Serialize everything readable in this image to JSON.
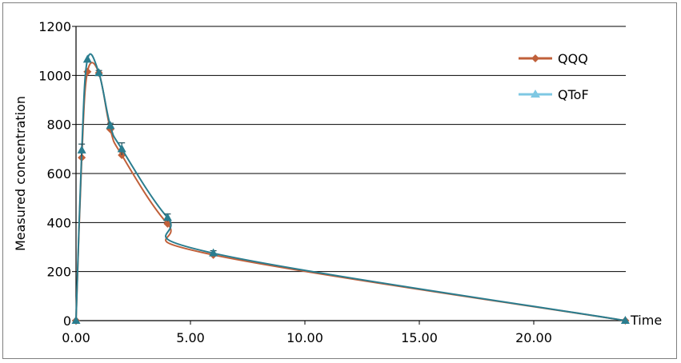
{
  "chart_data": {
    "type": "line",
    "title": "",
    "xlabel": "Time",
    "ylabel": "Measured concentration",
    "xlim": [
      0,
      24
    ],
    "ylim": [
      0,
      1200
    ],
    "x_ticks": [
      "0.00",
      "5.00",
      "10.00",
      "15.00",
      "20.00"
    ],
    "x_tick_values": [
      0,
      5,
      10,
      15,
      20
    ],
    "y_ticks": [
      "0",
      "200",
      "400",
      "600",
      "800",
      "1000",
      "1200"
    ],
    "y_tick_values": [
      0,
      200,
      400,
      600,
      800,
      1000,
      1200
    ],
    "grid": "horizontal",
    "legend_position": "top-right",
    "series": [
      {
        "name": "QQQ",
        "color": "#c0603a",
        "marker": "diamond",
        "x": [
          0,
          0.25,
          0.5,
          1,
          1.5,
          2,
          4,
          6,
          24
        ],
        "y": [
          0,
          665,
          1015,
          1010,
          780,
          675,
          395,
          268,
          0
        ]
      },
      {
        "name": "QToF",
        "color": "#2a7d8f",
        "legend_color": "#7ec8e3",
        "marker": "triangle",
        "x": [
          0,
          0.25,
          0.5,
          1,
          1.5,
          2,
          4,
          6,
          24
        ],
        "y": [
          0,
          695,
          1065,
          1010,
          795,
          700,
          420,
          275,
          0
        ],
        "error": [
          0,
          25,
          0,
          10,
          10,
          25,
          15,
          10,
          0
        ]
      }
    ]
  }
}
